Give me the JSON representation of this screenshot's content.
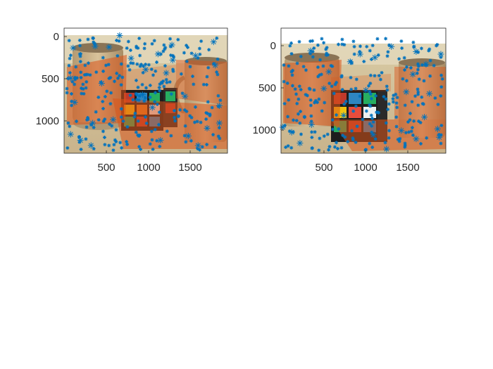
{
  "figure": {
    "background": "#ffffff",
    "marker_color": "#0072BD",
    "match_color": "#D95319",
    "axis_color": "#262626"
  },
  "chart_data": [
    {
      "type": "scatter",
      "title": "",
      "xlabel": "",
      "ylabel": "",
      "xlim": [
        0,
        2000
      ],
      "ylim": [
        1350,
        -100
      ],
      "y_reversed": true,
      "grid": false,
      "xticks": [
        "500",
        "1000",
        "1500"
      ],
      "yticks": [
        "0",
        "500",
        "1000"
      ],
      "image_background": "photo of two ceramic mugs and a Rubik's cube on a table",
      "series": [
        {
          "marker": "asterisk",
          "points": [
            {
              "x": 680,
              "y": -15
            },
            {
              "x": 1830,
              "y": 60
            },
            {
              "x": 1320,
              "y": 95
            },
            {
              "x": 1610,
              "y": 220
            },
            {
              "x": 1850,
              "y": 330
            },
            {
              "x": 110,
              "y": 130
            },
            {
              "x": 380,
              "y": 110
            },
            {
              "x": 550,
              "y": 120
            },
            {
              "x": 1150,
              "y": 200
            },
            {
              "x": 1330,
              "y": 270
            },
            {
              "x": 80,
              "y": 480
            },
            {
              "x": 130,
              "y": 760
            },
            {
              "x": 80,
              "y": 1130
            },
            {
              "x": 200,
              "y": 1200
            },
            {
              "x": 330,
              "y": 1260
            },
            {
              "x": 1180,
              "y": 1200
            },
            {
              "x": 1640,
              "y": 1260
            },
            {
              "x": 1900,
              "y": 1000
            },
            {
              "x": 1900,
              "y": 800
            },
            {
              "x": 1480,
              "y": 690
            },
            {
              "x": 820,
              "y": 250
            },
            {
              "x": 1000,
              "y": 380
            },
            {
              "x": 460,
              "y": 540
            },
            {
              "x": 960,
              "y": 670
            },
            {
              "x": 1080,
              "y": 820
            },
            {
              "x": 350,
              "y": 1000
            },
            {
              "x": 1520,
              "y": 1150
            },
            {
              "x": 1750,
              "y": 1060
            },
            {
              "x": 600,
              "y": 960
            },
            {
              "x": 1250,
              "y": 420
            }
          ]
        }
      ]
    },
    {
      "type": "scatter",
      "title": "",
      "xlabel": "",
      "ylabel": "",
      "xlim": [
        0,
        2000
      ],
      "ylim": [
        1270,
        -220
      ],
      "y_reversed": true,
      "grid": false,
      "xticks": [
        "500",
        "1000",
        "1500"
      ],
      "yticks": [
        "0",
        "500",
        "1000"
      ],
      "image_background": "photo of two ceramic mugs and a Rubik's cube on a table, viewed from a shifted angle",
      "series": [
        {
          "marker": "asterisk",
          "points": [
            {
              "x": 360,
              "y": 50
            },
            {
              "x": 1340,
              "y": 0
            },
            {
              "x": 1640,
              "y": 60
            },
            {
              "x": 1940,
              "y": 90
            },
            {
              "x": 1140,
              "y": 130
            },
            {
              "x": 960,
              "y": 90
            },
            {
              "x": 1760,
              "y": 210
            },
            {
              "x": 20,
              "y": 960
            },
            {
              "x": 130,
              "y": 1020
            },
            {
              "x": 230,
              "y": 1150
            },
            {
              "x": 1280,
              "y": 1220
            },
            {
              "x": 1640,
              "y": 1100
            },
            {
              "x": 1920,
              "y": 1080
            },
            {
              "x": 1900,
              "y": 980
            },
            {
              "x": 1740,
              "y": 840
            },
            {
              "x": 1520,
              "y": 540
            },
            {
              "x": 520,
              "y": 500
            },
            {
              "x": 760,
              "y": 820
            },
            {
              "x": 1030,
              "y": 520
            },
            {
              "x": 1460,
              "y": 1000
            },
            {
              "x": 1120,
              "y": 1050
            },
            {
              "x": 580,
              "y": 300
            },
            {
              "x": 840,
              "y": 180
            },
            {
              "x": 1600,
              "y": 330
            },
            {
              "x": 370,
              "y": 930
            },
            {
              "x": 1800,
              "y": 560
            }
          ]
        }
      ]
    }
  ]
}
